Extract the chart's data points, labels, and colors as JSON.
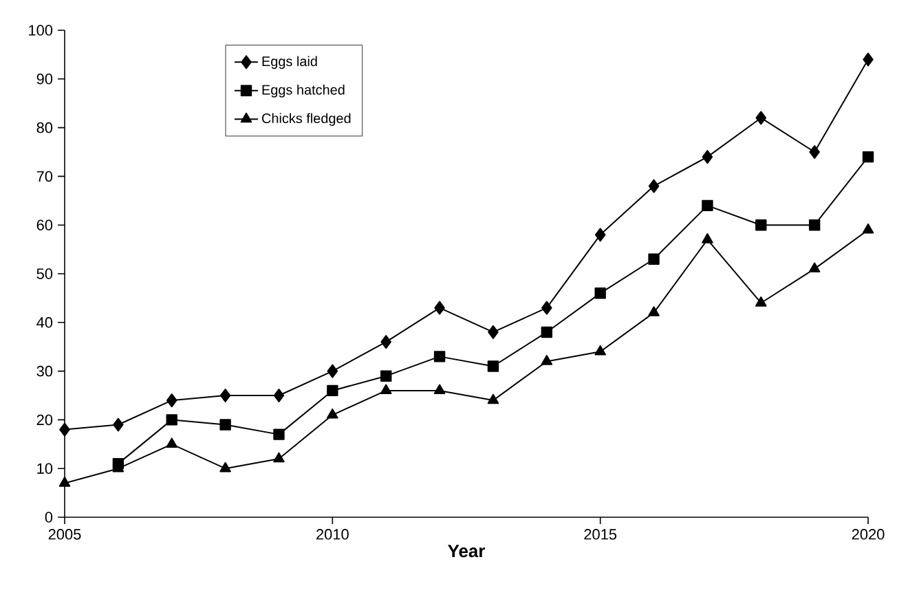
{
  "chart_data": {
    "type": "line",
    "xlabel": "Year",
    "x": [
      2005,
      2006,
      2007,
      2008,
      2009,
      2010,
      2011,
      2012,
      2013,
      2014,
      2015,
      2016,
      2017,
      2018,
      2019,
      2020
    ],
    "series": [
      {
        "name": "Eggs laid",
        "color": "#000000",
        "marker": "diamond",
        "values": [
          18,
          19,
          24,
          25,
          25,
          30,
          36,
          43,
          38,
          43,
          58,
          68,
          74,
          82,
          75,
          94
        ]
      },
      {
        "name": "Eggs hatched",
        "color": "#000000",
        "marker": "square",
        "values": [
          null,
          11,
          20,
          19,
          17,
          26,
          29,
          33,
          31,
          38,
          46,
          53,
          64,
          60,
          60,
          74
        ]
      },
      {
        "name": "Chicks fledged",
        "color": "#000000",
        "marker": "triangle",
        "values": [
          7,
          10,
          15,
          10,
          12,
          21,
          26,
          26,
          24,
          32,
          34,
          42,
          57,
          44,
          51,
          59
        ]
      }
    ],
    "xlim": [
      2005,
      2020
    ],
    "xticks": [
      2005,
      2010,
      2015,
      2020
    ],
    "ylim": [
      0,
      100
    ],
    "yticks": [
      0,
      10,
      20,
      30,
      40,
      50,
      60,
      70,
      80,
      90,
      100
    ],
    "grid": false,
    "legend": "top left",
    "line_style": "solid"
  }
}
